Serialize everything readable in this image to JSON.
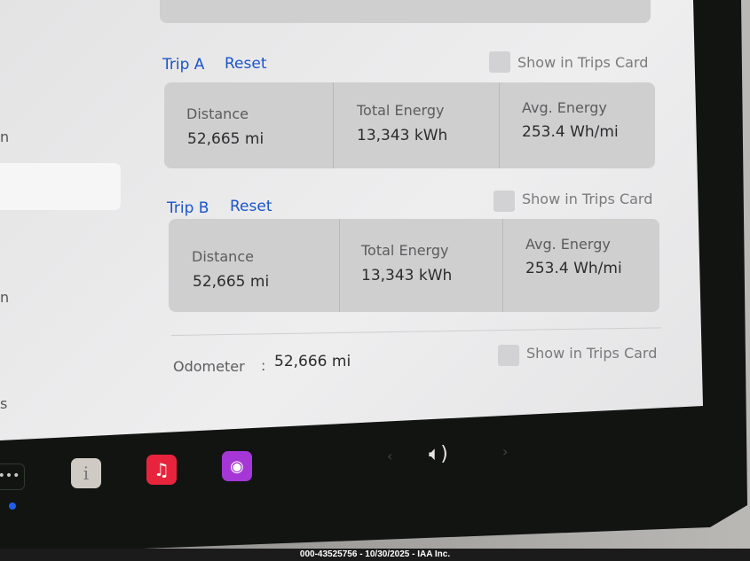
{
  "trip_a": {
    "title": "Trip A",
    "reset": "Reset",
    "show_label": "Show in Trips Card",
    "distance_label": "Distance",
    "distance": "52,665  mi",
    "energy_label": "Total Energy",
    "energy": "13,343  kWh",
    "avg_label": "Avg. Energy",
    "avg": "253.4  Wh/mi"
  },
  "trip_b": {
    "title": "Trip B",
    "reset": "Reset",
    "show_label": "Show in Trips Card",
    "distance_label": "Distance",
    "distance": "52,665  mi",
    "energy_label": "Total Energy",
    "energy": "13,343  kWh",
    "avg_label": "Avg. Energy",
    "avg": "253.4  Wh/mi"
  },
  "odometer": {
    "label": "Odometer",
    "sep": ":",
    "value": "52,666  mi",
    "show_label": "Show in Trips Card"
  },
  "sidebar": {
    "items": [
      "n",
      "n",
      "s"
    ]
  },
  "dock": {
    "apps": [
      "more-apps",
      "manual",
      "music",
      "podcasts"
    ],
    "volume_icon": "speaker-icon"
  },
  "colors": {
    "accent": "#1a55c8",
    "music": "#e8243c",
    "podcasts": "#a537d6"
  },
  "footer": "000-43525756 - 10/30/2025 - IAA Inc."
}
